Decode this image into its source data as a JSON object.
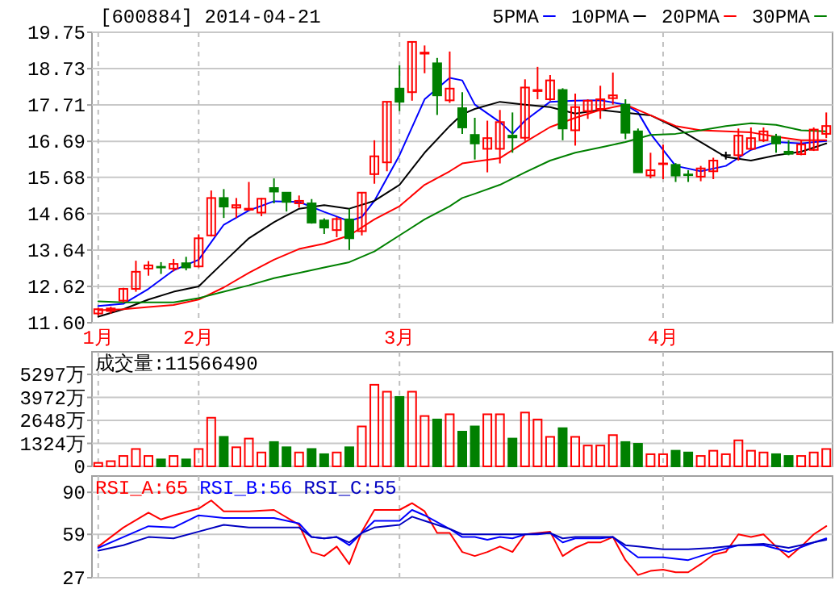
{
  "chart_data": [
    {
      "type": "candlestick",
      "title": "[600884] 2014-04-21",
      "categories": [
        "1月",
        null,
        null,
        null,
        null,
        null,
        null,
        null,
        "2月",
        null,
        null,
        null,
        null,
        null,
        null,
        null,
        null,
        null,
        null,
        null,
        null,
        null,
        null,
        null,
        "3月",
        null,
        null,
        null,
        null,
        null,
        null,
        null,
        null,
        null,
        null,
        null,
        null,
        null,
        null,
        null,
        null,
        null,
        null,
        null,
        null,
        "4月",
        null,
        null,
        null,
        null,
        null,
        null,
        null,
        null,
        null,
        null,
        null,
        null,
        null
      ],
      "ohlc": [
        [
          11.86,
          12.02,
          11.8,
          11.98
        ],
        [
          11.93,
          12.05,
          11.85,
          12.0
        ],
        [
          12.22,
          12.58,
          12.17,
          12.55
        ],
        [
          12.55,
          13.34,
          12.47,
          13.03
        ],
        [
          13.12,
          13.33,
          12.92,
          13.21
        ],
        [
          13.17,
          13.3,
          12.97,
          13.15
        ],
        [
          13.12,
          13.39,
          13.04,
          13.25
        ],
        [
          13.27,
          13.45,
          13.07,
          13.15
        ],
        [
          13.18,
          14.08,
          13.15,
          13.97
        ],
        [
          14.05,
          15.31,
          14.02,
          15.1
        ],
        [
          15.1,
          15.35,
          14.54,
          14.86
        ],
        [
          14.83,
          15.1,
          14.54,
          14.9
        ],
        [
          14.77,
          15.55,
          14.75,
          14.8
        ],
        [
          14.69,
          15.1,
          14.59,
          15.08
        ],
        [
          15.38,
          15.65,
          14.95,
          15.28
        ],
        [
          15.25,
          15.25,
          14.72,
          14.99
        ],
        [
          14.95,
          15.17,
          14.83,
          15.02
        ],
        [
          14.95,
          15.07,
          14.38,
          14.41
        ],
        [
          14.47,
          14.53,
          14.09,
          14.27
        ],
        [
          14.2,
          14.57,
          14.0,
          14.51
        ],
        [
          14.5,
          14.8,
          13.64,
          13.97
        ],
        [
          14.17,
          15.25,
          14.05,
          15.25
        ],
        [
          15.77,
          16.72,
          15.5,
          16.27
        ],
        [
          16.1,
          17.8,
          15.85,
          17.8
        ],
        [
          18.17,
          18.82,
          17.54,
          17.8
        ],
        [
          18.07,
          19.48,
          17.83,
          19.48
        ],
        [
          19.15,
          19.38,
          18.6,
          19.18
        ],
        [
          18.88,
          19.03,
          17.43,
          17.98
        ],
        [
          17.84,
          19.21,
          17.77,
          18.17
        ],
        [
          17.62,
          18.07,
          16.9,
          17.08
        ],
        [
          16.87,
          17.35,
          16.18,
          16.63
        ],
        [
          16.48,
          17.27,
          15.82,
          16.78
        ],
        [
          16.48,
          17.57,
          16.07,
          17.23
        ],
        [
          16.85,
          17.5,
          16.37,
          16.8
        ],
        [
          16.79,
          18.43,
          16.7,
          18.2
        ],
        [
          18.1,
          18.78,
          17.87,
          18.13
        ],
        [
          17.87,
          18.55,
          17.83,
          18.4
        ],
        [
          18.13,
          18.18,
          16.72,
          17.05
        ],
        [
          17.0,
          18.03,
          16.57,
          17.65
        ],
        [
          17.54,
          17.87,
          17.32,
          17.83
        ],
        [
          17.6,
          18.25,
          17.32,
          17.87
        ],
        [
          17.9,
          18.62,
          17.72,
          17.98
        ],
        [
          17.72,
          17.87,
          16.75,
          16.93
        ],
        [
          16.97,
          17.05,
          15.82,
          15.82
        ],
        [
          15.73,
          16.37,
          15.65,
          15.88
        ],
        [
          16.05,
          16.6,
          15.63,
          16.07
        ],
        [
          16.03,
          16.08,
          15.55,
          15.73
        ],
        [
          15.76,
          15.88,
          15.55,
          15.74
        ],
        [
          15.7,
          16.0,
          15.57,
          15.93
        ],
        [
          15.85,
          16.23,
          15.63,
          16.15
        ],
        [
          16.3,
          16.4,
          16.18,
          16.3
        ],
        [
          16.3,
          17.05,
          16.15,
          16.85
        ],
        [
          16.48,
          17.08,
          16.45,
          16.78
        ],
        [
          16.72,
          17.08,
          16.67,
          16.97
        ],
        [
          16.82,
          16.9,
          16.37,
          16.63
        ],
        [
          16.4,
          16.72,
          16.3,
          16.34
        ],
        [
          16.33,
          16.72,
          16.3,
          16.6
        ],
        [
          16.45,
          17.08,
          16.42,
          17.02
        ],
        [
          16.9,
          17.5,
          16.78,
          17.12
        ]
      ],
      "series": [
        {
          "name": "5PMA",
          "type": "line",
          "color": "#0000ff",
          "values": [
            12.07,
            null,
            12.13,
            null,
            12.55,
            null,
            13.07,
            null,
            13.37,
            null,
            14.35,
            null,
            14.75,
            null,
            15.01,
            null,
            14.99,
            null,
            14.71,
            null,
            14.45,
            14.57,
            15.02,
            null,
            16.3,
            null,
            17.87,
            null,
            18.47,
            18.4,
            17.72,
            null,
            17.23,
            16.9,
            17.27,
            null,
            17.8,
            null,
            17.83,
            null,
            17.84,
            null,
            17.72,
            17.5,
            16.9,
            null,
            16.0,
            null,
            15.85,
            null,
            16.0,
            null,
            16.45,
            null,
            16.67,
            null,
            16.63,
            null,
            16.7
          ]
        },
        {
          "name": "10PMA",
          "type": "line",
          "color": "#000000",
          "values": [
            11.77,
            null,
            11.98,
            null,
            12.25,
            null,
            12.47,
            null,
            12.62,
            null,
            13.3,
            null,
            13.97,
            null,
            14.42,
            null,
            14.8,
            null,
            14.9,
            null,
            14.8,
            null,
            15.02,
            null,
            15.47,
            null,
            16.37,
            null,
            17.12,
            17.45,
            17.6,
            null,
            17.8,
            null,
            17.72,
            null,
            17.65,
            null,
            17.47,
            null,
            17.57,
            null,
            null,
            null,
            17.42,
            null,
            17.08,
            null,
            16.67,
            null,
            16.25,
            null,
            16.15,
            null,
            16.3,
            null,
            16.4,
            null,
            16.63
          ]
        },
        {
          "name": "20PMA",
          "type": "line",
          "color": "#ff0000",
          "values": [
            11.95,
            null,
            11.98,
            null,
            12.04,
            null,
            12.1,
            null,
            12.25,
            null,
            12.59,
            null,
            13.0,
            null,
            13.37,
            null,
            13.67,
            null,
            13.82,
            null,
            14.05,
            null,
            14.5,
            null,
            14.87,
            null,
            15.47,
            null,
            15.85,
            16.07,
            16.12,
            null,
            16.22,
            null,
            16.67,
            null,
            17.09,
            null,
            17.35,
            null,
            17.57,
            null,
            17.72,
            null,
            17.42,
            null,
            17.12,
            null,
            17.0,
            null,
            16.97,
            null,
            16.94,
            null,
            16.82,
            null,
            16.72,
            null,
            16.72
          ]
        },
        {
          "name": "30PMA",
          "type": "line",
          "color": "#008000",
          "values": [
            12.2,
            null,
            12.17,
            null,
            12.17,
            null,
            12.17,
            null,
            12.29,
            null,
            12.47,
            null,
            12.65,
            null,
            12.85,
            null,
            13.0,
            null,
            13.15,
            null,
            13.3,
            null,
            13.6,
            null,
            14.05,
            null,
            14.5,
            null,
            14.87,
            15.1,
            15.22,
            null,
            15.47,
            null,
            15.82,
            null,
            16.15,
            null,
            16.37,
            null,
            16.52,
            null,
            16.67,
            null,
            16.87,
            null,
            16.9,
            null,
            17.0,
            null,
            17.12,
            null,
            17.2,
            null,
            17.15,
            null,
            17.0,
            null,
            16.97
          ]
        }
      ],
      "ylim": [
        11.6,
        19.75
      ],
      "yticks": [
        {
          "value": 11.6,
          "label": "11.60"
        },
        12.62,
        13.64,
        14.66,
        15.68,
        16.69,
        17.71,
        18.73,
        19.75
      ],
      "grid": true,
      "legend": "top right"
    },
    {
      "type": "bar",
      "annotations": [
        "成交量:11566490"
      ],
      "categories": [
        null,
        null,
        null,
        null,
        null,
        null,
        null,
        null,
        null,
        null,
        null,
        null,
        null,
        null,
        null,
        null,
        null,
        null,
        null,
        null,
        null,
        null,
        null,
        null,
        null,
        null,
        null,
        null,
        null,
        null,
        null,
        null,
        null,
        null,
        null,
        null,
        null,
        null,
        null,
        null,
        null,
        null,
        null,
        null,
        null,
        null,
        null,
        null,
        null,
        null,
        null,
        null,
        null,
        null,
        null,
        null,
        null,
        null,
        null
      ],
      "values": [
        200,
        300,
        600,
        1000,
        600,
        400,
        600,
        400,
        1000,
        2800,
        1700,
        1100,
        1600,
        800,
        1400,
        1100,
        800,
        1000,
        700,
        800,
        1100,
        2300,
        4700,
        4300,
        4000,
        4300,
        2900,
        2700,
        3000,
        2000,
        2300,
        3000,
        3000,
        1600,
        3100,
        2700,
        1700,
        2200,
        1700,
        1200,
        1200,
        1800,
        1400,
        1300,
        700,
        700,
        900,
        800,
        600,
        900,
        700,
        1500,
        900,
        800,
        700,
        600,
        600,
        800,
        1000
      ],
      "colors": [
        "#ff0000",
        "#ff0000",
        "#ff0000",
        "#ff0000",
        "#ff0000",
        "#008000",
        "#ff0000",
        "#008000",
        "#ff0000",
        "#ff0000",
        "#008000",
        "#ff0000",
        "#ff0000",
        "#ff0000",
        "#008000",
        "#008000",
        "#ff0000",
        "#008000",
        "#008000",
        "#ff0000",
        "#008000",
        "#ff0000",
        "#ff0000",
        "#ff0000",
        "#008000",
        "#ff0000",
        "#ff0000",
        "#008000",
        "#ff0000",
        "#008000",
        "#008000",
        "#ff0000",
        "#ff0000",
        "#008000",
        "#ff0000",
        "#ff0000",
        "#ff0000",
        "#008000",
        "#ff0000",
        "#ff0000",
        "#ff0000",
        "#ff0000",
        "#008000",
        "#008000",
        "#ff0000",
        "#ff0000",
        "#008000",
        "#008000",
        "#ff0000",
        "#ff0000",
        "#ff0000",
        "#ff0000",
        "#ff0000",
        "#ff0000",
        "#008000",
        "#008000",
        "#ff0000",
        "#ff0000",
        "#ff0000"
      ],
      "ylim": [
        0,
        6600
      ],
      "yticks": [
        0,
        {
          "value": 1324,
          "label": "1324万"
        },
        {
          "value": 2648,
          "label": "2648万"
        },
        {
          "value": 3972,
          "label": "3972万"
        },
        {
          "value": 5297,
          "label": "5297万"
        }
      ],
      "grid": true,
      "tick_labels": "y"
    },
    {
      "type": "line",
      "categories": [
        null,
        null,
        null,
        null,
        null,
        null,
        null,
        null,
        null,
        null,
        null,
        null,
        null,
        null,
        null,
        null,
        null,
        null,
        null,
        null,
        null,
        null,
        null,
        null,
        null,
        null,
        null,
        null,
        null,
        null,
        null,
        null,
        null,
        null,
        null,
        null,
        null,
        null,
        null,
        null,
        null,
        null,
        null,
        null,
        null,
        null,
        null,
        null,
        null,
        null,
        null,
        null,
        null,
        null,
        null,
        null,
        null,
        null,
        null
      ],
      "series": [
        {
          "name": "RSI_A:65",
          "color": "#ff0000",
          "values": [
            50,
            null,
            64,
            null,
            75,
            70,
            73,
            null,
            78,
            84,
            76,
            null,
            76,
            null,
            77,
            null,
            66,
            46,
            43,
            50,
            37,
            61,
            77,
            null,
            77,
            82,
            76,
            60,
            60,
            46,
            43,
            46,
            50,
            46,
            59,
            null,
            61,
            43,
            49,
            53,
            53,
            57,
            40,
            29,
            32,
            33,
            31,
            31,
            37,
            44,
            46,
            59,
            57,
            59,
            50,
            42,
            50,
            59,
            65
          ]
        },
        {
          "name": "RSI_B:56",
          "color": "#0000ff",
          "values": [
            49,
            null,
            57,
            null,
            65,
            null,
            64,
            null,
            73,
            null,
            71,
            null,
            71,
            null,
            71,
            null,
            67,
            57,
            56,
            57,
            51,
            60,
            69,
            null,
            69,
            77,
            73,
            null,
            63,
            57,
            57,
            55,
            57,
            56,
            59,
            59,
            60,
            53,
            56,
            56,
            56,
            57,
            49,
            42,
            null,
            42,
            null,
            40,
            null,
            46,
            null,
            51,
            null,
            51,
            null,
            46,
            null,
            53,
            56
          ]
        },
        {
          "name": "RSI_C:55",
          "color": "#0000c0",
          "values": [
            47,
            null,
            51,
            null,
            57,
            null,
            56,
            null,
            61,
            null,
            66,
            null,
            64,
            null,
            64,
            null,
            64,
            57,
            56,
            57,
            53,
            60,
            64,
            null,
            66,
            72,
            69,
            null,
            63,
            59,
            59,
            null,
            59,
            null,
            59,
            null,
            60,
            56,
            57,
            null,
            57,
            57,
            51,
            50,
            null,
            48,
            null,
            48,
            null,
            49,
            null,
            51,
            null,
            52,
            null,
            49,
            null,
            53,
            55
          ]
        }
      ],
      "ylim": [
        27,
        102
      ],
      "yticks": [
        27,
        59,
        90
      ],
      "grid": true,
      "legend": "top left",
      "tick_labels": "y"
    }
  ]
}
